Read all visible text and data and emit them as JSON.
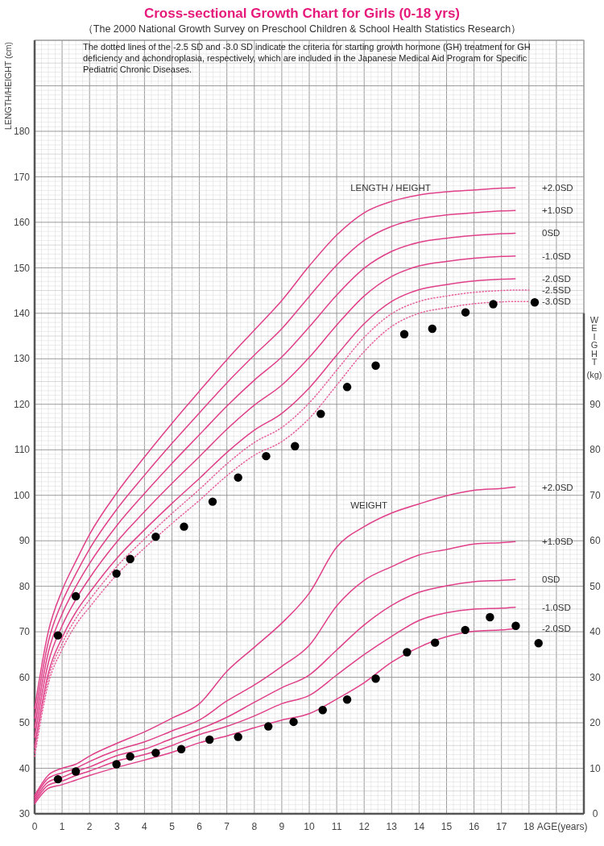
{
  "chart_data": {
    "type": "line",
    "title": "Cross-sectional Growth Chart for Girls (0-18 yrs)",
    "subtitle": "（The 2000 National Growth Survey on Preschool Children & School Health Statistics Research）",
    "xlabel": "AGE(years)",
    "ylabel": "LENGTH/HEIGHT (cm)",
    "y2label": "WEIGHT (kg)",
    "xlim": [
      0,
      20
    ],
    "xticks": [
      0,
      1,
      2,
      3,
      4,
      5,
      6,
      7,
      8,
      9,
      10,
      11,
      12,
      13,
      14,
      15,
      16,
      17,
      18
    ],
    "ylim": [
      30,
      200
    ],
    "yticks": [
      30,
      40,
      50,
      60,
      70,
      80,
      90,
      100,
      110,
      120,
      130,
      140,
      150,
      160,
      170,
      180
    ],
    "y2lim": [
      0,
      110
    ],
    "y2ticks": [
      0,
      10,
      20,
      30,
      40,
      50,
      60,
      70,
      80,
      90
    ],
    "grid": true,
    "annotations": [
      "The dotted lines of the -2.5 SD and -3.0 SD indicate the criteria for starting growth hormone (GH) treatment for GH deficiency and achondroplasia, respectively, which are included in the Japanese Medical Aid Program for Specific Pediatric Chronic Diseases.",
      "LENGTH / HEIGHT",
      "WEIGHT"
    ],
    "series": [
      {
        "name": "+2.0SD",
        "color": "#e0408a",
        "x": [
          0,
          0.5,
          1,
          1.5,
          2,
          3,
          4,
          5,
          6,
          7,
          8,
          9,
          10,
          11,
          12,
          13,
          14,
          15,
          16,
          17,
          17.5
        ],
        "values": [
          53.1,
          70.1,
          79.1,
          85.5,
          91.4,
          100.6,
          108.4,
          115.8,
          122.9,
          129.8,
          136.3,
          142.8,
          150.4,
          157.2,
          162.1,
          164.6,
          166.0,
          166.7,
          167.1,
          167.5,
          167.6
        ]
      },
      {
        "name": "+1.0SD",
        "color": "#e0408a",
        "x": [
          0,
          0.5,
          1,
          1.5,
          2,
          3,
          4,
          5,
          6,
          7,
          8,
          9,
          10,
          11,
          12,
          13,
          14,
          15,
          16,
          17,
          17.5
        ],
        "values": [
          51.0,
          67.8,
          76.5,
          82.7,
          88.2,
          97.0,
          104.4,
          111.4,
          118.1,
          124.7,
          130.8,
          136.6,
          143.7,
          150.6,
          156.0,
          159.1,
          160.8,
          161.6,
          162.1,
          162.5,
          162.6
        ]
      },
      {
        "name": "0SD",
        "color": "#e0408a",
        "x": [
          0,
          0.5,
          1,
          1.5,
          2,
          3,
          4,
          5,
          6,
          7,
          8,
          9,
          10,
          11,
          12,
          13,
          14,
          15,
          16,
          17,
          17.5
        ],
        "values": [
          48.9,
          65.5,
          73.9,
          79.9,
          85.0,
          93.4,
          100.4,
          107.0,
          113.3,
          119.6,
          125.3,
          130.4,
          137.0,
          144.0,
          149.9,
          153.6,
          155.6,
          156.5,
          157.1,
          157.5,
          157.6
        ]
      },
      {
        "name": "-1.0SD",
        "color": "#e0408a",
        "x": [
          0,
          0.5,
          1,
          1.5,
          2,
          3,
          4,
          5,
          6,
          7,
          8,
          9,
          10,
          11,
          12,
          13,
          14,
          15,
          16,
          17,
          17.5
        ],
        "values": [
          46.8,
          63.2,
          71.3,
          77.1,
          81.8,
          89.8,
          96.4,
          102.6,
          108.5,
          114.5,
          119.8,
          124.2,
          130.3,
          137.4,
          143.8,
          148.1,
          150.4,
          151.4,
          152.1,
          152.5,
          152.6
        ]
      },
      {
        "name": "-2.0SD",
        "color": "#e0408a",
        "x": [
          0,
          0.5,
          1,
          1.5,
          2,
          3,
          4,
          5,
          6,
          7,
          8,
          9,
          10,
          11,
          12,
          13,
          14,
          15,
          16,
          17,
          17.5
        ],
        "values": [
          44.7,
          60.9,
          68.7,
          74.3,
          78.6,
          86.2,
          92.4,
          98.2,
          103.7,
          109.4,
          114.3,
          118.0,
          123.6,
          130.8,
          137.7,
          142.6,
          145.2,
          146.3,
          147.1,
          147.5,
          147.6
        ]
      },
      {
        "name": "-2.5SD",
        "line_style": "dotted",
        "color": "#e8609c",
        "x": [
          0,
          0.5,
          1,
          1.5,
          2,
          3,
          4,
          5,
          6,
          7,
          8,
          9,
          10,
          11,
          12,
          13,
          14,
          15,
          16,
          17,
          17.5,
          18
        ],
        "values": [
          43.7,
          59.8,
          67.4,
          72.9,
          77.0,
          84.4,
          90.4,
          96.0,
          101.3,
          106.9,
          111.6,
          114.9,
          120.3,
          127.5,
          134.7,
          139.9,
          142.6,
          143.8,
          144.6,
          145.0,
          145.1,
          145.1
        ]
      },
      {
        "name": "-3.0SD",
        "line_style": "dotted",
        "color": "#e8609c",
        "x": [
          0,
          0.5,
          1,
          1.5,
          2,
          3,
          4,
          5,
          6,
          7,
          8,
          9,
          10,
          11,
          12,
          13,
          14,
          15,
          16,
          17,
          17.5,
          18
        ],
        "values": [
          42.6,
          58.6,
          66.1,
          71.5,
          75.4,
          82.6,
          88.4,
          93.8,
          98.9,
          104.3,
          108.8,
          111.8,
          116.9,
          124.2,
          131.6,
          137.1,
          140.0,
          141.2,
          142.1,
          142.5,
          142.6,
          142.6
        ]
      },
      {
        "name": "+2.0SD",
        "axis": "y2",
        "color": "#e0408a",
        "x": [
          0,
          0.5,
          1,
          1.5,
          2,
          3,
          4,
          5,
          6,
          7,
          8,
          9,
          10,
          11,
          12,
          13,
          14,
          15,
          16,
          17,
          17.5
        ],
        "values": [
          4.0,
          8.5,
          10.0,
          10.9,
          12.7,
          15.5,
          18.0,
          21.0,
          24.2,
          31.3,
          36.6,
          41.9,
          48.5,
          58.6,
          63.1,
          66.1,
          68.1,
          69.9,
          71.1,
          71.5,
          71.8
        ]
      },
      {
        "name": "+1.0SD",
        "axis": "y2",
        "color": "#e0408a",
        "x": [
          0,
          0.5,
          1,
          1.5,
          2,
          3,
          4,
          5,
          6,
          7,
          8,
          9,
          10,
          11,
          12,
          13,
          14,
          15,
          16,
          17,
          17.5
        ],
        "values": [
          3.5,
          7.8,
          9.0,
          10.0,
          11.5,
          14.0,
          15.8,
          18.2,
          20.6,
          24.8,
          28.3,
          32.4,
          37.0,
          45.7,
          51.3,
          54.3,
          56.9,
          58.1,
          59.3,
          59.6,
          59.8
        ]
      },
      {
        "name": "0SD",
        "axis": "y2",
        "color": "#e0408a",
        "x": [
          0,
          0.5,
          1,
          1.5,
          2,
          3,
          4,
          5,
          6,
          7,
          8,
          9,
          10,
          11,
          12,
          13,
          14,
          15,
          16,
          17,
          17.5
        ],
        "values": [
          3.0,
          7.0,
          8.0,
          9.3,
          10.3,
          12.8,
          14.2,
          16.5,
          18.6,
          21.2,
          24.5,
          27.7,
          30.5,
          36.0,
          41.5,
          45.8,
          48.7,
          50.1,
          51.0,
          51.3,
          51.5
        ]
      },
      {
        "name": "-1.0SD",
        "axis": "y2",
        "color": "#e0408a",
        "x": [
          0,
          0.5,
          1,
          1.5,
          2,
          3,
          4,
          5,
          6,
          7,
          8,
          9,
          10,
          11,
          12,
          13,
          14,
          15,
          16,
          17,
          17.5
        ],
        "values": [
          2.6,
          6.3,
          7.2,
          8.4,
          9.4,
          11.6,
          13.0,
          15.0,
          17.4,
          19.2,
          21.5,
          24.2,
          26.0,
          30.5,
          35.0,
          39.0,
          42.5,
          44.2,
          45.0,
          45.2,
          45.4
        ]
      },
      {
        "name": "-2.0SD",
        "axis": "y2",
        "color": "#e0408a",
        "x": [
          0,
          0.5,
          1,
          1.5,
          2,
          3,
          4,
          5,
          6,
          7,
          8,
          9,
          10,
          11,
          12,
          13,
          14,
          15,
          16,
          17,
          17.5
        ],
        "values": [
          2.2,
          5.6,
          6.4,
          7.4,
          8.4,
          10.2,
          11.8,
          13.5,
          15.6,
          17.1,
          18.9,
          20.6,
          22.0,
          25.2,
          28.8,
          33.3,
          36.6,
          38.9,
          40.1,
          40.4,
          40.7
        ]
      },
      {
        "type": "scatter",
        "marker": "circle",
        "color": "#000000",
        "x": [
          0.85,
          1.5,
          2.98,
          3.48,
          4.41,
          5.44,
          6.48,
          7.41,
          8.43,
          9.48,
          10.42,
          11.38,
          12.42,
          13.46,
          14.48,
          15.69,
          16.7,
          18.21
        ],
        "values": [
          69.2,
          77.8,
          82.8,
          86.0,
          90.9,
          93.1,
          98.6,
          103.9,
          108.6,
          110.8,
          117.9,
          123.8,
          128.5,
          135.4,
          136.6,
          140.2,
          142.0,
          142.4
        ]
      },
      {
        "type": "scatter",
        "marker": "circle",
        "axis": "y2",
        "color": "#000000",
        "x": [
          0.85,
          1.5,
          2.98,
          3.48,
          4.41,
          5.34,
          6.37,
          7.41,
          8.51,
          9.43,
          10.49,
          11.38,
          12.42,
          13.56,
          14.58,
          15.68,
          16.58,
          17.52,
          18.35
        ],
        "values": [
          7.6,
          9.3,
          10.9,
          12.6,
          13.4,
          14.2,
          16.3,
          16.9,
          19.2,
          20.2,
          22.8,
          25.1,
          29.7,
          35.5,
          37.6,
          40.4,
          43.2,
          41.3,
          37.5
        ]
      }
    ]
  }
}
